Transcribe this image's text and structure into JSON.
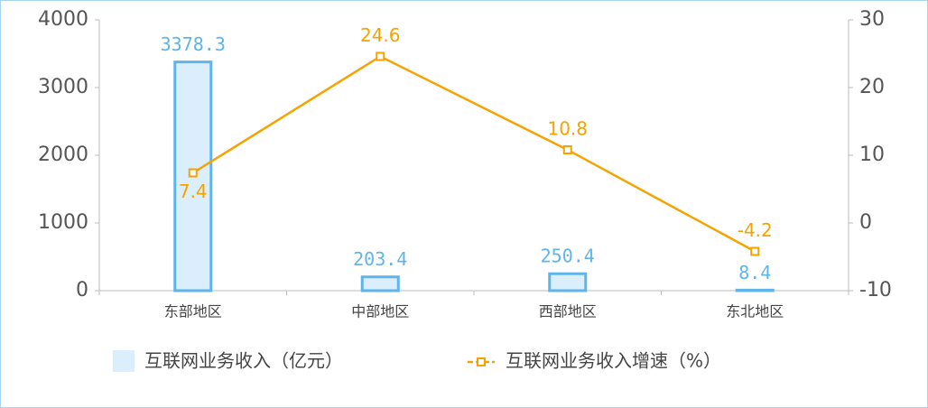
{
  "chart_data": {
    "type": "bar_line",
    "categories": [
      "东部地区",
      "中部地区",
      "西部地区",
      "东北地区"
    ],
    "series": [
      {
        "name": "互联网业务收入（亿元）",
        "type": "bar",
        "color": "#5fb4ea",
        "fill": "#dbeefb",
        "values": [
          3378.3,
          203.4,
          250.4,
          8.4
        ]
      },
      {
        "name": "互联网业务收入增速（%）",
        "type": "line",
        "axis": "y2",
        "color": "#f5a300",
        "values": [
          7.4,
          24.6,
          10.8,
          -4.2
        ]
      }
    ],
    "ylim": [
      0,
      4000
    ],
    "yticks": [
      0,
      1000,
      2000,
      3000,
      4000
    ],
    "y2lim": [
      -10,
      30
    ],
    "y2ticks": [
      -10,
      0,
      10,
      20,
      30
    ],
    "legend": "bottom"
  }
}
